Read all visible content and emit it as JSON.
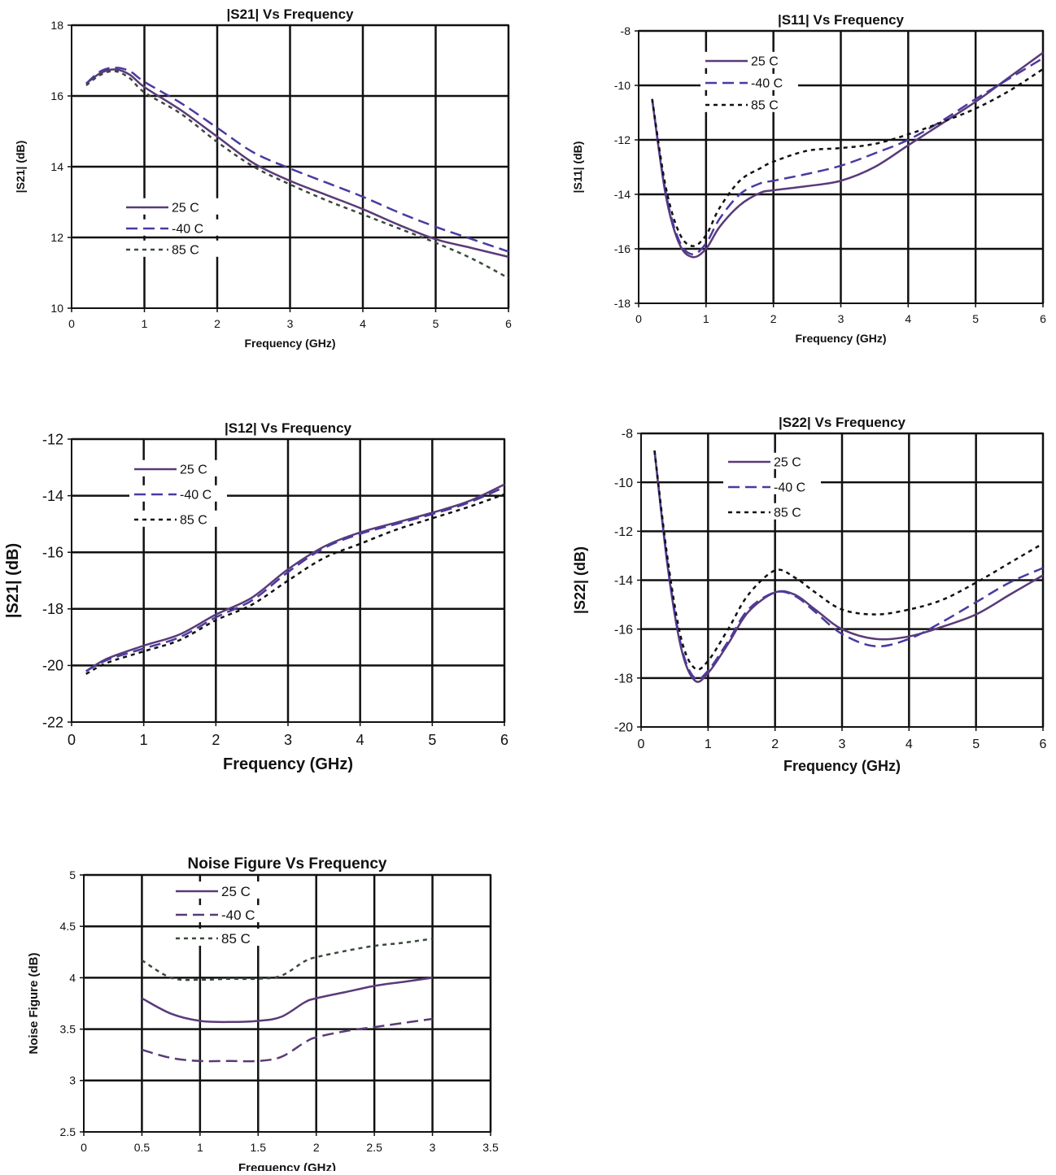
{
  "chart_data": [
    {
      "id": "s21",
      "type": "line",
      "title": "|S21| Vs Frequency",
      "xlabel": "Frequency (GHz)",
      "ylabel": "|S21| (dB)",
      "xlim": [
        0,
        6
      ],
      "ylim": [
        10,
        18
      ],
      "xticks": [
        "0",
        "1",
        "2",
        "3",
        "4",
        "5",
        "6"
      ],
      "yticks": [
        "10",
        "12",
        "14",
        "16",
        "18"
      ],
      "grid": true,
      "legend": "lower-left",
      "series": [
        {
          "name": "25 C",
          "style": "solid",
          "color": "#5a3a78",
          "x": [
            0.2,
            0.4,
            0.6,
            0.8,
            1.0,
            1.5,
            2.0,
            2.5,
            3.0,
            3.5,
            4.0,
            4.5,
            5.0,
            5.5,
            6.0
          ],
          "y": [
            16.35,
            16.65,
            16.75,
            16.6,
            16.25,
            15.6,
            14.85,
            14.1,
            13.6,
            13.2,
            12.8,
            12.35,
            11.95,
            11.7,
            11.45
          ]
        },
        {
          "name": "-40 C",
          "style": "dash",
          "color": "#4a3aa0",
          "x": [
            0.2,
            0.4,
            0.6,
            0.8,
            1.0,
            1.5,
            2.0,
            2.5,
            3.0,
            3.5,
            4.0,
            4.5,
            5.0,
            5.5,
            6.0
          ],
          "y": [
            16.35,
            16.7,
            16.8,
            16.7,
            16.4,
            15.8,
            15.1,
            14.4,
            13.95,
            13.55,
            13.15,
            12.7,
            12.3,
            11.95,
            11.6
          ]
        },
        {
          "name": "85 C",
          "style": "dot",
          "color": "#3a4a3a",
          "x": [
            0.2,
            0.4,
            0.6,
            0.8,
            1.0,
            1.5,
            2.0,
            2.5,
            3.0,
            3.5,
            4.0,
            4.5,
            5.0,
            5.5,
            6.0
          ],
          "y": [
            16.3,
            16.6,
            16.7,
            16.5,
            16.1,
            15.5,
            14.7,
            14.0,
            13.5,
            13.05,
            12.65,
            12.25,
            11.85,
            11.4,
            10.85
          ]
        }
      ]
    },
    {
      "id": "s11",
      "type": "line",
      "title": "|S11| Vs Frequency",
      "xlabel": "Frequency (GHz)",
      "ylabel": "|S11| (dB)",
      "xlim": [
        0,
        6
      ],
      "ylim": [
        -18,
        -8
      ],
      "xticks": [
        "0",
        "1",
        "2",
        "3",
        "4",
        "5",
        "6"
      ],
      "yticks": [
        "-18",
        "-16",
        "-14",
        "-12",
        "-10",
        "-8"
      ],
      "grid": true,
      "legend": "top-left",
      "series": [
        {
          "name": "25 C",
          "style": "solid",
          "color": "#5a3a78",
          "x": [
            0.2,
            0.4,
            0.6,
            0.8,
            1.0,
            1.2,
            1.5,
            1.8,
            2.0,
            2.5,
            3.0,
            3.5,
            4.0,
            4.5,
            5.0,
            5.5,
            6.0
          ],
          "y": [
            -10.5,
            -14.0,
            -15.8,
            -16.3,
            -16.0,
            -15.2,
            -14.4,
            -13.95,
            -13.85,
            -13.7,
            -13.5,
            -13.0,
            -12.2,
            -11.4,
            -10.6,
            -9.7,
            -8.8
          ]
        },
        {
          "name": "-40 C",
          "style": "dash",
          "color": "#4a3aa0",
          "x": [
            0.2,
            0.4,
            0.6,
            0.8,
            1.0,
            1.2,
            1.5,
            1.8,
            2.0,
            2.5,
            3.0,
            3.5,
            4.0,
            4.5,
            5.0,
            5.5,
            6.0
          ],
          "y": [
            -10.5,
            -13.9,
            -15.7,
            -16.2,
            -15.8,
            -14.9,
            -14.0,
            -13.6,
            -13.5,
            -13.25,
            -12.95,
            -12.5,
            -12.0,
            -11.3,
            -10.5,
            -9.75,
            -9.0
          ]
        },
        {
          "name": "85 C",
          "style": "dot",
          "color": "#111111",
          "x": [
            0.2,
            0.4,
            0.6,
            0.8,
            1.0,
            1.2,
            1.5,
            1.8,
            2.0,
            2.5,
            3.0,
            3.5,
            4.0,
            4.5,
            5.0,
            5.5,
            6.0
          ],
          "y": [
            -10.5,
            -13.7,
            -15.4,
            -15.9,
            -15.5,
            -14.5,
            -13.5,
            -13.05,
            -12.8,
            -12.4,
            -12.3,
            -12.15,
            -11.8,
            -11.35,
            -10.85,
            -10.2,
            -9.4
          ]
        }
      ]
    },
    {
      "id": "s12",
      "type": "line",
      "title": "|S12| Vs Frequency",
      "xlabel": "Frequency (GHz)",
      "ylabel": "|S21| (dB)",
      "xlim": [
        0,
        6
      ],
      "ylim": [
        -22,
        -12
      ],
      "xticks": [
        "0",
        "1",
        "2",
        "3",
        "4",
        "5",
        "6"
      ],
      "yticks": [
        "-22",
        "-20",
        "-18",
        "-16",
        "-14",
        "-12"
      ],
      "grid": true,
      "legend": "top-left",
      "series": [
        {
          "name": "25 C",
          "style": "solid",
          "color": "#5a3a78",
          "x": [
            0.2,
            0.5,
            1.0,
            1.5,
            2.0,
            2.5,
            3.0,
            3.5,
            4.0,
            4.5,
            5.0,
            5.5,
            6.0
          ],
          "y": [
            -20.2,
            -19.75,
            -19.3,
            -18.9,
            -18.2,
            -17.6,
            -16.6,
            -15.8,
            -15.3,
            -14.95,
            -14.6,
            -14.2,
            -13.6
          ]
        },
        {
          "name": "-40 C",
          "style": "dash",
          "color": "#4a3aa0",
          "x": [
            0.2,
            0.5,
            1.0,
            1.5,
            2.0,
            2.5,
            3.0,
            3.5,
            4.0,
            4.5,
            5.0,
            5.5,
            6.0
          ],
          "y": [
            -20.2,
            -19.8,
            -19.4,
            -19.0,
            -18.3,
            -17.7,
            -16.7,
            -15.85,
            -15.35,
            -15.0,
            -14.65,
            -14.25,
            -13.7
          ]
        },
        {
          "name": "85 C",
          "style": "dot",
          "color": "#111111",
          "x": [
            0.2,
            0.5,
            1.0,
            1.5,
            2.0,
            2.5,
            3.0,
            3.5,
            4.0,
            4.5,
            5.0,
            5.5,
            6.0
          ],
          "y": [
            -20.3,
            -19.9,
            -19.5,
            -19.1,
            -18.4,
            -17.85,
            -17.0,
            -16.2,
            -15.7,
            -15.2,
            -14.8,
            -14.4,
            -13.95
          ]
        }
      ]
    },
    {
      "id": "s22",
      "type": "line",
      "title": "|S22| Vs Frequency",
      "xlabel": "Frequency (GHz)",
      "ylabel": "|S22| (dB)",
      "xlim": [
        0,
        6
      ],
      "ylim": [
        -20,
        -8
      ],
      "xticks": [
        "0",
        "1",
        "2",
        "3",
        "4",
        "5",
        "6"
      ],
      "yticks": [
        "-20",
        "-18",
        "-16",
        "-14",
        "-12",
        "-10",
        "-8"
      ],
      "grid": true,
      "legend": "top-left",
      "series": [
        {
          "name": "25 C",
          "style": "solid",
          "color": "#5a3a78",
          "x": [
            0.2,
            0.4,
            0.6,
            0.8,
            1.0,
            1.3,
            1.6,
            2.0,
            2.3,
            2.6,
            3.0,
            3.5,
            4.0,
            4.5,
            5.0,
            5.5,
            6.0
          ],
          "y": [
            -8.7,
            -13.5,
            -16.8,
            -18.1,
            -17.8,
            -16.6,
            -15.3,
            -14.5,
            -14.6,
            -15.2,
            -16.0,
            -16.4,
            -16.3,
            -15.9,
            -15.4,
            -14.6,
            -13.8
          ]
        },
        {
          "name": "-40 C",
          "style": "dash",
          "color": "#4a3aa0",
          "x": [
            0.2,
            0.4,
            0.6,
            0.8,
            1.0,
            1.3,
            1.6,
            2.0,
            2.3,
            2.6,
            3.0,
            3.5,
            4.0,
            4.5,
            5.0,
            5.5,
            6.0
          ],
          "y": [
            -8.7,
            -13.4,
            -16.7,
            -18.0,
            -17.7,
            -16.5,
            -15.2,
            -14.5,
            -14.65,
            -15.3,
            -16.2,
            -16.7,
            -16.4,
            -15.7,
            -14.9,
            -14.1,
            -13.5
          ]
        },
        {
          "name": "85 C",
          "style": "dot",
          "color": "#111111",
          "x": [
            0.2,
            0.4,
            0.6,
            0.8,
            1.0,
            1.3,
            1.6,
            2.0,
            2.3,
            2.6,
            3.0,
            3.5,
            4.0,
            4.5,
            5.0,
            5.5,
            6.0
          ],
          "y": [
            -8.7,
            -13.2,
            -16.4,
            -17.6,
            -17.3,
            -16.0,
            -14.6,
            -13.6,
            -13.9,
            -14.5,
            -15.2,
            -15.4,
            -15.2,
            -14.8,
            -14.1,
            -13.3,
            -12.5
          ]
        }
      ]
    },
    {
      "id": "nf",
      "type": "line",
      "title": "Noise Figure Vs Frequency",
      "xlabel": "Frequency (GHz)",
      "ylabel": "Noise Figure (dB)",
      "xlim": [
        0,
        3.5
      ],
      "ylim": [
        2.5,
        5
      ],
      "xticks": [
        "0",
        "0.5",
        "1",
        "1.5",
        "2",
        "2.5",
        "3",
        "3.5"
      ],
      "yticks": [
        "2.5",
        "3",
        "3.5",
        "4",
        "4.5",
        "5"
      ],
      "grid": true,
      "legend": "top-left",
      "series": [
        {
          "name": "25 C",
          "style": "solid",
          "color": "#5a3a78",
          "x": [
            0.5,
            0.75,
            1.0,
            1.25,
            1.5,
            1.7,
            1.9,
            2.0,
            2.25,
            2.5,
            2.75,
            3.0
          ],
          "y": [
            3.8,
            3.65,
            3.58,
            3.57,
            3.58,
            3.62,
            3.76,
            3.8,
            3.86,
            3.92,
            3.96,
            4.0
          ]
        },
        {
          "name": "-40 C",
          "style": "dash",
          "color": "#5a3a78",
          "x": [
            0.5,
            0.75,
            1.0,
            1.25,
            1.5,
            1.7,
            1.9,
            2.0,
            2.25,
            2.5,
            2.75,
            3.0
          ],
          "y": [
            3.3,
            3.22,
            3.19,
            3.19,
            3.19,
            3.23,
            3.37,
            3.42,
            3.48,
            3.52,
            3.56,
            3.6
          ]
        },
        {
          "name": "85 C",
          "style": "dot",
          "color": "#3a4a3a",
          "x": [
            0.5,
            0.75,
            1.0,
            1.25,
            1.5,
            1.7,
            1.9,
            2.0,
            2.25,
            2.5,
            2.75,
            3.0
          ],
          "y": [
            4.17,
            4.0,
            3.98,
            3.99,
            3.99,
            4.02,
            4.16,
            4.2,
            4.26,
            4.31,
            4.34,
            4.38
          ]
        }
      ]
    }
  ]
}
